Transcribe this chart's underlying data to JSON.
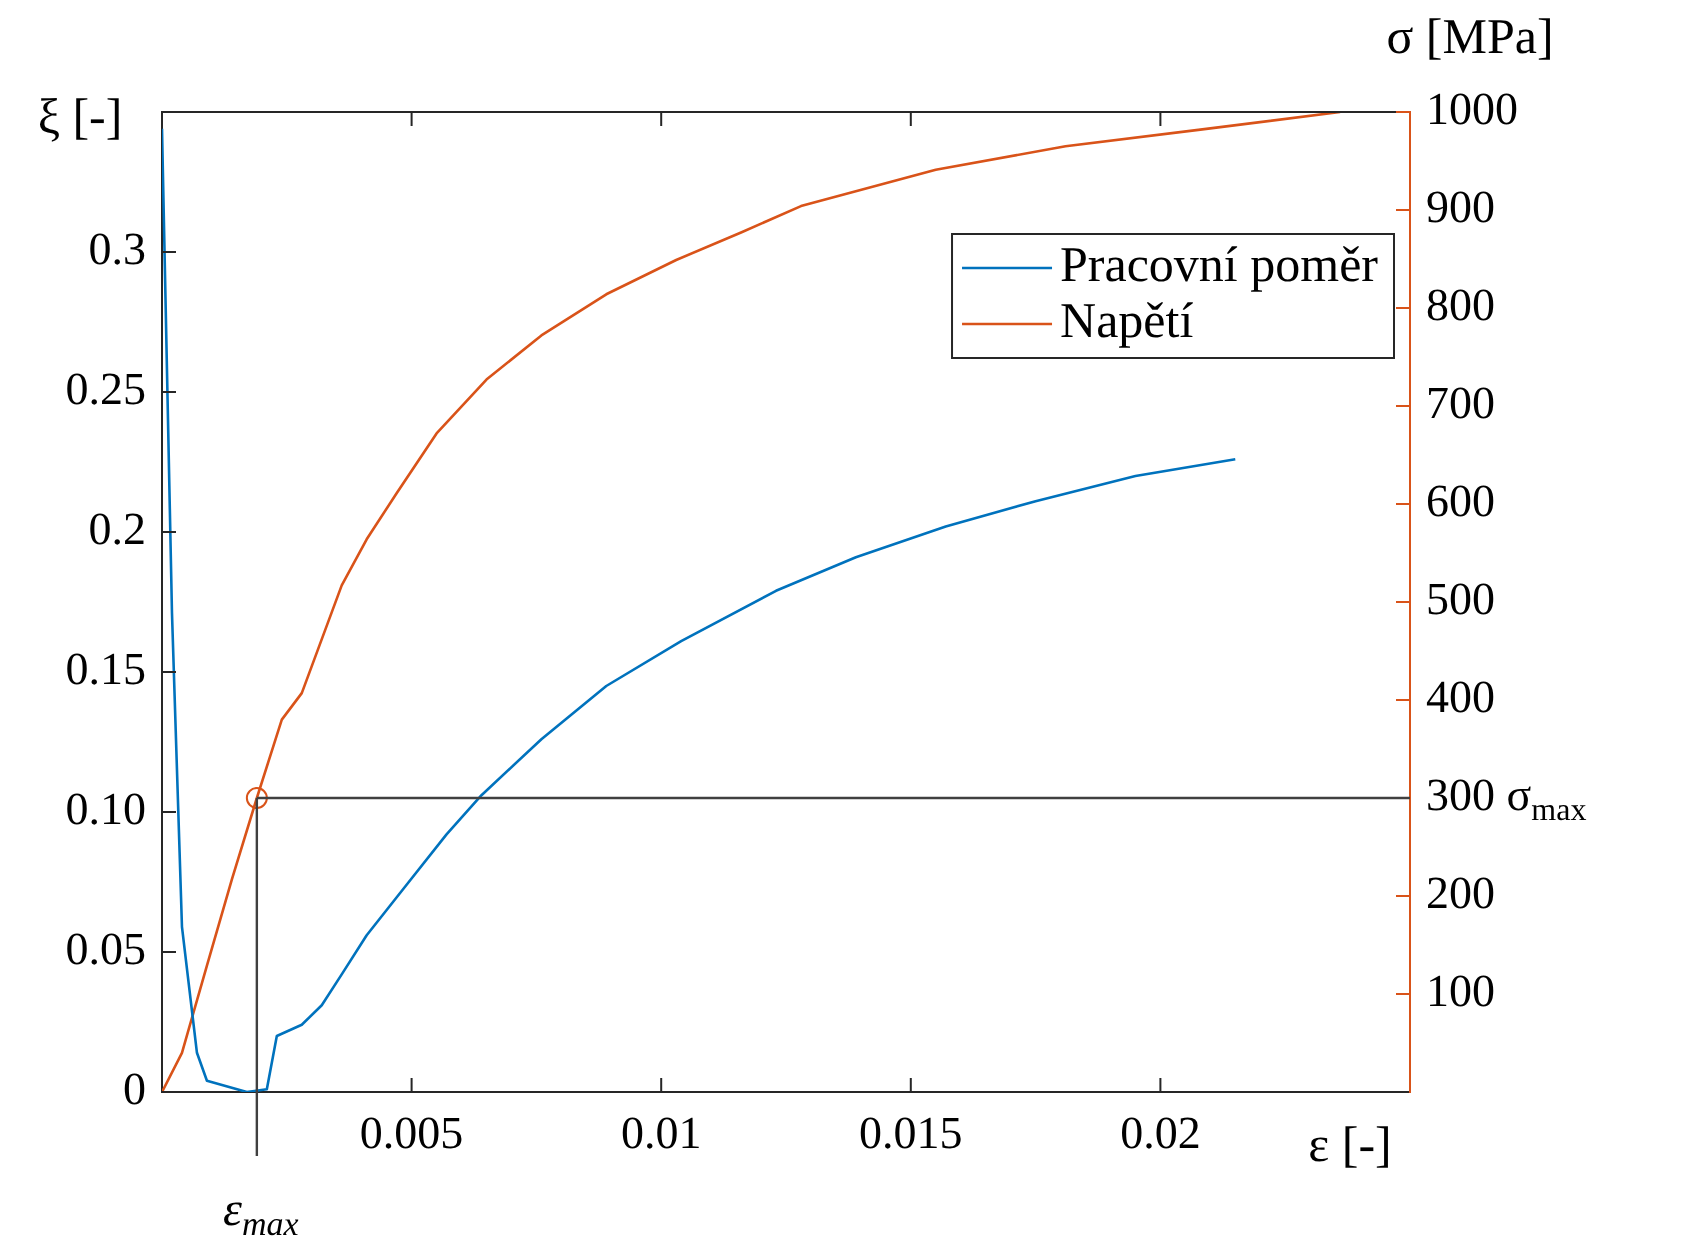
{
  "chart_data": {
    "type": "line",
    "xlabel": "ε [-]",
    "ylabel": "ξ [-]",
    "y2label": "σ [MPa]",
    "xlim": [
      0,
      0.025
    ],
    "xticks": [
      0.005,
      0.01,
      0.015,
      0.02
    ],
    "ylim": [
      0,
      0.35
    ],
    "yticks": [
      0,
      0.05,
      {
        "value": 0.1,
        "label": "0.10"
      },
      0.15,
      0.2,
      0.25,
      0.3
    ],
    "y2lim": [
      0,
      1000
    ],
    "y2ticks": [
      100,
      200,
      {
        "value": 300,
        "label": "300 σ$_{max}$"
      },
      400,
      500,
      600,
      700,
      800,
      900,
      1000
    ],
    "grid": false,
    "legend": "top right",
    "marker": "none",
    "line_style": "solid",
    "series": [
      {
        "name": "Pracovní poměr",
        "color": "#0072bd",
        "x": [
          0,
          0.0002,
          0.0004,
          0.0007,
          0.0009,
          0.0017,
          0.0021,
          0.0023,
          0.0028,
          0.0032,
          0.0036,
          0.0041,
          0.0049,
          0.0057,
          0.0064,
          0.0076,
          0.0089,
          0.0104,
          0.0123,
          0.0139,
          0.0157,
          0.0175,
          0.0195,
          0.0215
        ],
        "values": [
          0.344,
          0.171,
          0.059,
          0.014,
          0.004,
          0,
          0.001,
          0.02,
          0.024,
          0.031,
          0.042,
          0.056,
          0.074,
          0.092,
          0.106,
          0.126,
          0.145,
          0.161,
          0.179,
          0.191,
          0.202,
          0.211,
          0.22,
          0.226
        ]
      },
      {
        "name": "Napětí",
        "color": "#d95319",
        "axis": "y2",
        "x": [
          0,
          0.0004,
          0.0009,
          0.0014,
          0.0019,
          0.0024,
          0.0028,
          0.0036,
          0.0041,
          0.0047,
          0.0055,
          0.0065,
          0.0076,
          0.0089,
          0.0103,
          0.0116,
          0.0128,
          0.0155,
          0.0181,
          0.0208,
          0.0236
        ],
        "values": [
          0,
          40,
          129,
          217,
          300,
          380,
          407,
          517,
          564,
          611,
          672,
          727,
          772,
          814,
          849,
          877,
          904,
          941,
          965,
          982,
          1000
        ]
      },
      {
        "type": "scatter",
        "color": "#d95319",
        "axis": "y2",
        "marker": "circle",
        "x": [
          0.0019
        ],
        "values": [
          300
        ]
      }
    ],
    "ref_lines": [
      {
        "axis": "y2",
        "value": 300,
        "color": "#404040"
      },
      {
        "axis": "x",
        "value": 0.0019,
        "label": "ε$_{max}$",
        "color": "#404040"
      }
    ]
  }
}
